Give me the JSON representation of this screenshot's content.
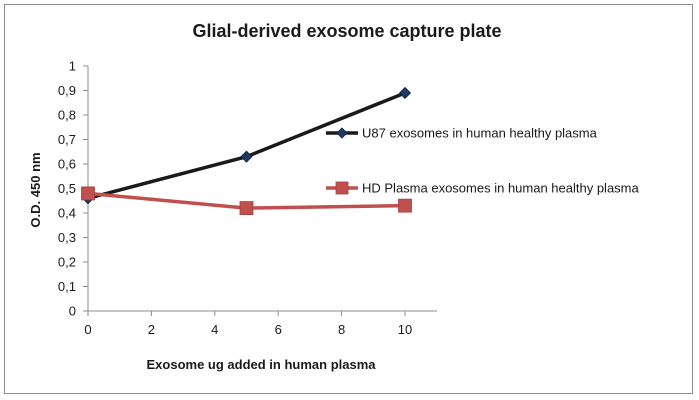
{
  "chart_data": {
    "type": "line",
    "title": "Glial-derived exosome capture plate",
    "xlabel": "Exosome ug added in human plasma",
    "ylabel": "O.D. 450 nm",
    "xlim": [
      0,
      10
    ],
    "ylim": [
      0,
      1
    ],
    "x_ticks": [
      "0",
      "2",
      "4",
      "6",
      "8",
      "10"
    ],
    "y_ticks": [
      "0",
      "0,1",
      "0,2",
      "0,3",
      "0,4",
      "0,5",
      "0,6",
      "0,7",
      "0,8",
      "0,9",
      "1"
    ],
    "grid": false,
    "legend_position": "right",
    "series": [
      {
        "name": "U87 exosomes in human healthy plasma",
        "color": "#1a1a1a",
        "marker_color": "#1f3864",
        "marker": "diamond",
        "x": [
          0,
          5,
          10
        ],
        "y": [
          0.46,
          0.63,
          0.89
        ]
      },
      {
        "name": "HD Plasma exosomes in human healthy plasma",
        "color": "#c0504d",
        "marker_color": "#c0504d",
        "marker": "square",
        "x": [
          0,
          5,
          10
        ],
        "y": [
          0.48,
          0.42,
          0.43
        ]
      }
    ]
  }
}
